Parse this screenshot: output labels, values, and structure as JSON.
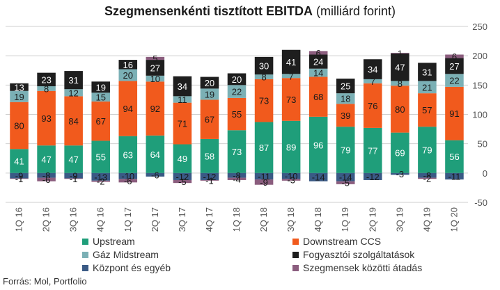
{
  "title_bold": "Szegmensenkénti tisztított EBITDA",
  "title_rest": " (milliárd forint)",
  "source": "Forrás: Mol, Portfolio",
  "chart_data": {
    "type": "bar",
    "stacked": true,
    "categories": [
      "1Q 16",
      "2Q 16",
      "3Q 16",
      "4Q 16",
      "1Q 17",
      "2Q 17",
      "3Q 17",
      "4Q 17",
      "1Q 18",
      "2Q 18",
      "3Q 18",
      "4Q 18",
      "1Q 19",
      "2Q 19",
      "3Q 19",
      "4Q 19",
      "1Q 20"
    ],
    "ylim": [
      -50,
      250
    ],
    "yticks": [
      -50,
      0,
      50,
      100,
      150,
      200,
      250
    ],
    "grid": true,
    "legend_position": "bottom",
    "series": [
      {
        "name": "Upstream",
        "color": "#1f9e7a",
        "values": [
          41,
          47,
          47,
          55,
          63,
          64,
          49,
          58,
          73,
          87,
          89,
          96,
          79,
          77,
          69,
          79,
          56
        ]
      },
      {
        "name": "Downstream CCS",
        "color": "#f15a1d",
        "values": [
          80,
          93,
          84,
          67,
          94,
          92,
          71,
          67,
          55,
          73,
          73,
          68,
          39,
          76,
          80,
          57,
          91
        ]
      },
      {
        "name": "Gáz Midstream",
        "color": "#7bb0b5",
        "values": [
          19,
          8,
          12,
          15,
          20,
          10,
          11,
          19,
          22,
          8,
          7,
          14,
          18,
          7,
          8,
          21,
          22
        ]
      },
      {
        "name": "Fogyasztói szolgáltatások",
        "color": "#1e1e1e",
        "values": [
          13,
          23,
          31,
          19,
          16,
          27,
          34,
          20,
          20,
          30,
          41,
          24,
          25,
          34,
          47,
          31,
          27
        ]
      },
      {
        "name": "Központ és egyéb",
        "color": "#3a5a85",
        "values": [
          -9,
          -8,
          -9,
          -13,
          -10,
          -6,
          -12,
          -12,
          -8,
          -11,
          -10,
          -14,
          -14,
          -12,
          -3,
          -8,
          -11
        ]
      },
      {
        "name": "Szegmensek közötti átadás",
        "color": "#8b5d7e",
        "values": [
          -1,
          -6,
          -1,
          -2,
          -6,
          5,
          -5,
          -1,
          -4,
          -9,
          -3,
          6,
          -5,
          0,
          1,
          -2,
          6
        ]
      }
    ],
    "hidden_labels": [
      {
        "category": "2Q 19",
        "series": "Szegmensek közötti átadás"
      }
    ]
  }
}
